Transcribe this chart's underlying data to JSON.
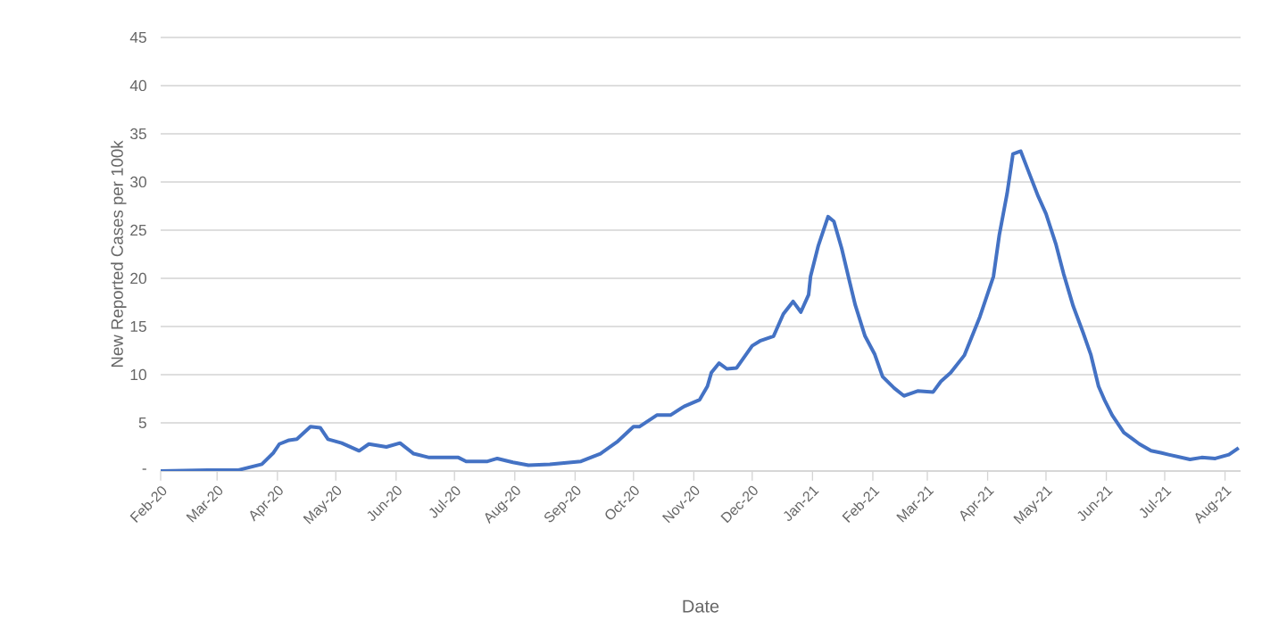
{
  "chart_data": {
    "type": "line",
    "xlabel": "Date",
    "ylabel": "New Reported Cases per 100k",
    "x": [
      "2020-02-01",
      "2020-02-25",
      "2020-03-12",
      "2020-03-24",
      "2020-03-30",
      "2020-04-02",
      "2020-04-07",
      "2020-04-11",
      "2020-04-18",
      "2020-04-23",
      "2020-04-27",
      "2020-05-04",
      "2020-05-13",
      "2020-05-18",
      "2020-05-27",
      "2020-06-03",
      "2020-06-10",
      "2020-06-18",
      "2020-06-24",
      "2020-07-03",
      "2020-07-07",
      "2020-07-18",
      "2020-07-23",
      "2020-07-31",
      "2020-08-08",
      "2020-08-19",
      "2020-08-30",
      "2020-09-04",
      "2020-09-14",
      "2020-09-23",
      "2020-10-01",
      "2020-10-04",
      "2020-10-13",
      "2020-10-20",
      "2020-10-27",
      "2020-11-04",
      "2020-11-08",
      "2020-11-10",
      "2020-11-14",
      "2020-11-18",
      "2020-11-23",
      "2020-12-01",
      "2020-12-05",
      "2020-12-12",
      "2020-12-17",
      "2020-12-22",
      "2020-12-26",
      "2020-12-30",
      "2020-12-31",
      "2021-01-02",
      "2021-01-04",
      "2021-01-09",
      "2021-01-12",
      "2021-01-16",
      "2021-01-20",
      "2021-01-23",
      "2021-01-28",
      "2021-02-02",
      "2021-02-06",
      "2021-02-12",
      "2021-02-17",
      "2021-02-24",
      "2021-03-04",
      "2021-03-08",
      "2021-03-13",
      "2021-03-20",
      "2021-03-28",
      "2021-04-04",
      "2021-04-07",
      "2021-04-11",
      "2021-04-14",
      "2021-04-18",
      "2021-04-22",
      "2021-04-27",
      "2021-05-01",
      "2021-05-06",
      "2021-05-10",
      "2021-05-15",
      "2021-05-20",
      "2021-05-24",
      "2021-05-28",
      "2021-05-31",
      "2021-06-04",
      "2021-06-10",
      "2021-06-18",
      "2021-06-24",
      "2021-06-29",
      "2021-07-03",
      "2021-07-14",
      "2021-07-20",
      "2021-07-27",
      "2021-08-03",
      "2021-08-08"
    ],
    "series": [
      {
        "color": "#4472c4",
        "values": [
          0,
          0.1,
          0.1,
          0.7,
          1.9,
          2.8,
          3.2,
          3.3,
          4.6,
          4.5,
          3.3,
          2.9,
          2.1,
          2.8,
          2.5,
          2.9,
          1.8,
          1.4,
          1.4,
          1.4,
          1.0,
          1.0,
          1.3,
          0.9,
          0.6,
          0.7,
          0.9,
          1.0,
          1.8,
          3.1,
          4.6,
          4.6,
          5.8,
          5.8,
          6.7,
          7.4,
          8.8,
          10.2,
          11.2,
          10.6,
          10.7,
          13.0,
          13.5,
          14.0,
          16.3,
          17.6,
          16.5,
          18.3,
          20.2,
          21.8,
          23.4,
          26.4,
          25.9,
          23.1,
          19.7,
          17.2,
          14.0,
          12.1,
          9.8,
          8.6,
          7.8,
          8.3,
          8.2,
          9.3,
          10.2,
          12.0,
          16.0,
          20.2,
          24.5,
          28.8,
          32.9,
          33.2,
          31.1,
          28.5,
          26.7,
          23.6,
          20.5,
          17.1,
          14.4,
          12.1,
          8.8,
          7.4,
          5.8,
          4.0,
          2.8,
          2.1,
          1.9,
          1.7,
          1.2,
          1.4,
          1.3,
          1.7,
          2.4
        ]
      }
    ],
    "xlim": [
      "2020-02-01",
      "2021-08-09"
    ],
    "xticks": [
      {
        "value": "2020-02-01",
        "label": "Feb-20"
      },
      {
        "value": "2020-03-01",
        "label": "Mar-20"
      },
      {
        "value": "2020-04-01",
        "label": "Apr-20"
      },
      {
        "value": "2020-05-01",
        "label": "May-20"
      },
      {
        "value": "2020-06-01",
        "label": "Jun-20"
      },
      {
        "value": "2020-07-01",
        "label": "Jul-20"
      },
      {
        "value": "2020-08-01",
        "label": "Aug-20"
      },
      {
        "value": "2020-09-01",
        "label": "Sep-20"
      },
      {
        "value": "2020-10-01",
        "label": "Oct-20"
      },
      {
        "value": "2020-11-01",
        "label": "Nov-20"
      },
      {
        "value": "2020-12-01",
        "label": "Dec-20"
      },
      {
        "value": "2021-01-01",
        "label": "Jan-21"
      },
      {
        "value": "2021-02-01",
        "label": "Feb-21"
      },
      {
        "value": "2021-03-01",
        "label": "Mar-21"
      },
      {
        "value": "2021-04-01",
        "label": "Apr-21"
      },
      {
        "value": "2021-05-01",
        "label": "May-21"
      },
      {
        "value": "2021-06-01",
        "label": "Jun-21"
      },
      {
        "value": "2021-07-01",
        "label": "Jul-21"
      },
      {
        "value": "2021-08-01",
        "label": "Aug-21"
      }
    ],
    "ylim": [
      0,
      45
    ],
    "yticks": [
      {
        "value": 0,
        "label": "-"
      },
      5,
      10,
      15,
      20,
      25,
      30,
      35,
      40,
      45
    ],
    "grid": "y",
    "legend": false,
    "marker": "none",
    "line_style": "solid"
  }
}
